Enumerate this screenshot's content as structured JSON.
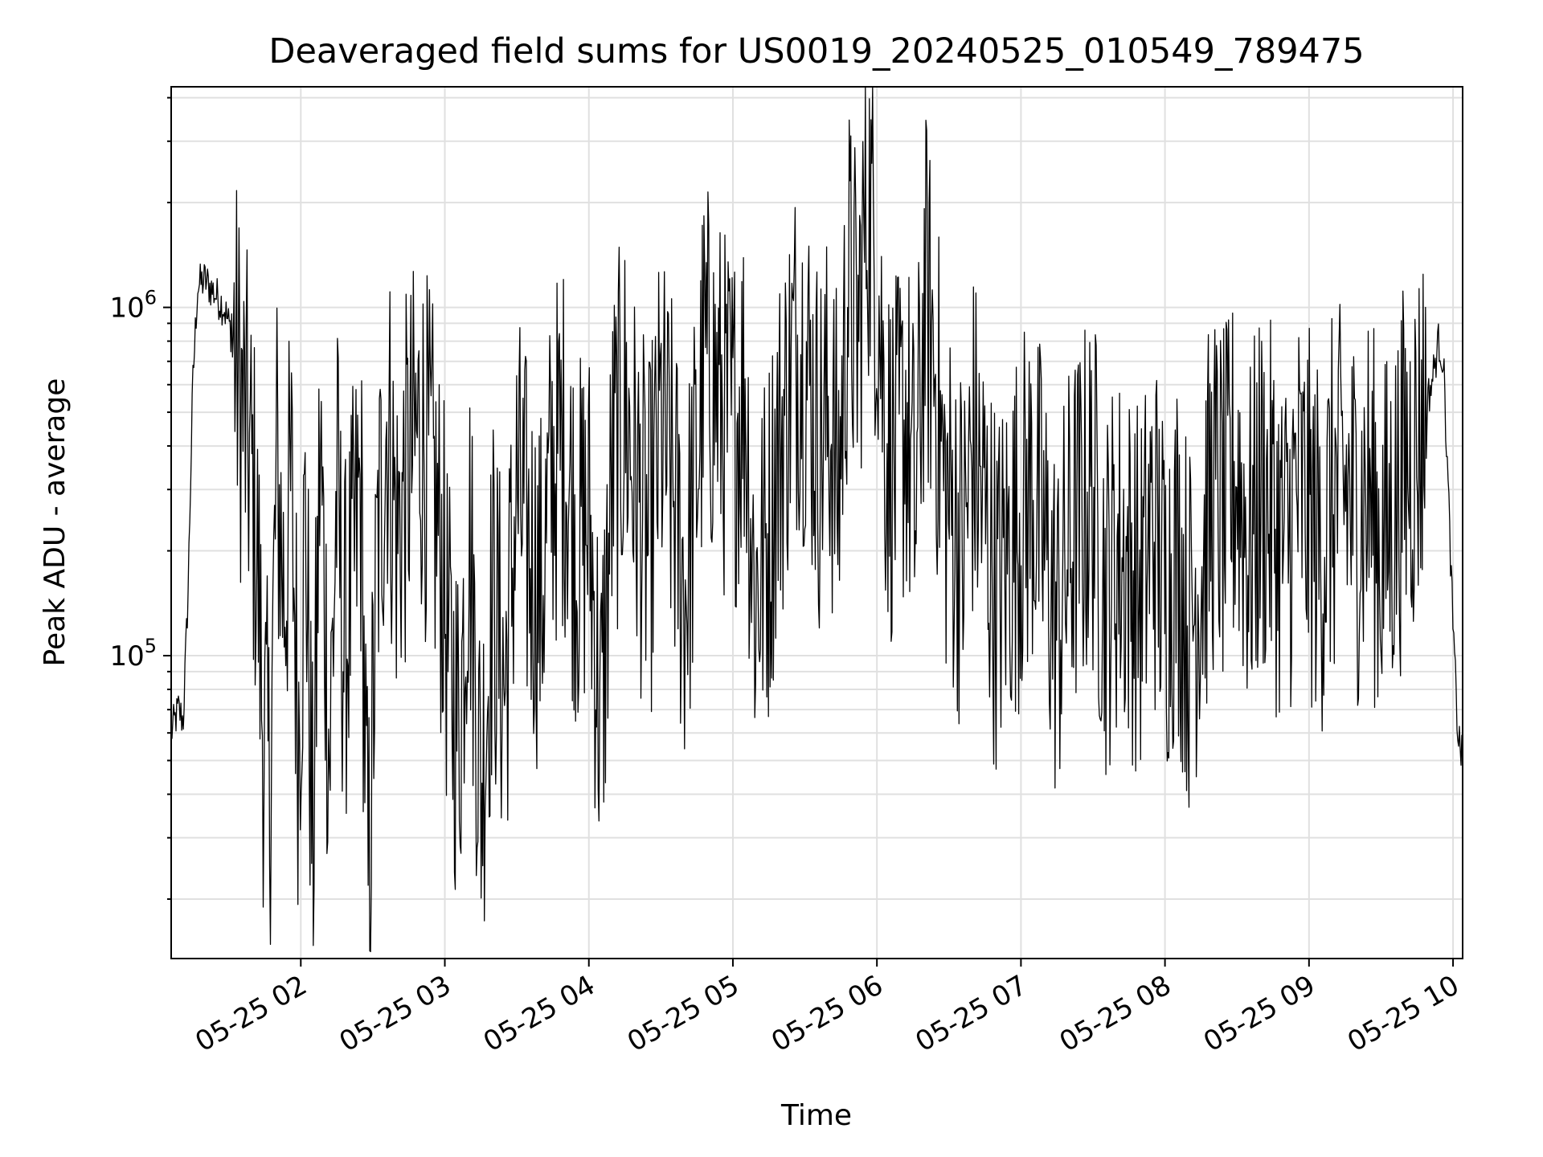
{
  "chart_data": {
    "type": "line",
    "title": "Deaveraged field sums for US0019_20240525_010549_789475",
    "xlabel": "Time",
    "ylabel": "Peak ADU - average",
    "yscale": "log",
    "ylim": [
      13500,
      4300000
    ],
    "xlim": [
      "2024-05-25 01:06",
      "2024-05-25 10:04"
    ],
    "grid": "on (major and minor)",
    "line_color": "#000000",
    "x_ticks": [
      {
        "t": "2024-05-25 02:00",
        "label": "05-25 02"
      },
      {
        "t": "2024-05-25 03:00",
        "label": "05-25 03"
      },
      {
        "t": "2024-05-25 04:00",
        "label": "05-25 04"
      },
      {
        "t": "2024-05-25 05:00",
        "label": "05-25 05"
      },
      {
        "t": "2024-05-25 06:00",
        "label": "05-25 06"
      },
      {
        "t": "2024-05-25 07:00",
        "label": "05-25 07"
      },
      {
        "t": "2024-05-25 08:00",
        "label": "05-25 08"
      },
      {
        "t": "2024-05-25 09:00",
        "label": "05-25 09"
      },
      {
        "t": "2024-05-25 10:00",
        "label": "05-25 10"
      }
    ],
    "y_ticks": [
      {
        "v": 100000,
        "base": "10",
        "exp": "5"
      },
      {
        "v": 1000000,
        "base": "10",
        "exp": "6"
      }
    ],
    "series": [
      {
        "x": [
          "2024-05-25 01:06",
          "2024-05-25 01:09",
          "2024-05-25 01:11",
          "2024-05-25 01:13",
          "2024-05-25 01:15",
          "2024-05-25 01:17",
          "2024-05-25 01:20",
          "2024-05-25 01:24",
          "2024-05-25 01:28",
          "2024-05-25 01:32",
          "2024-05-25 01:35",
          "2024-05-25 01:38",
          "2024-05-25 01:40",
          "2024-05-25 01:42",
          "2024-05-25 01:44",
          "2024-05-25 01:47",
          "2024-05-25 01:50",
          "2024-05-25 01:53",
          "2024-05-25 01:56",
          "2024-05-25 01:59",
          "2024-05-25 02:02",
          "2024-05-25 02:05",
          "2024-05-25 02:08",
          "2024-05-25 02:12",
          "2024-05-25 02:15",
          "2024-05-25 02:18",
          "2024-05-25 02:22",
          "2024-05-25 02:25",
          "2024-05-25 02:28",
          "2024-05-25 02:32",
          "2024-05-25 02:36",
          "2024-05-25 02:40",
          "2024-05-25 02:45",
          "2024-05-25 02:50",
          "2024-05-25 02:55",
          "2024-05-25 02:59",
          "2024-05-25 03:02",
          "2024-05-25 03:06",
          "2024-05-25 03:10",
          "2024-05-25 03:15",
          "2024-05-25 03:20",
          "2024-05-25 03:25",
          "2024-05-25 03:30",
          "2024-05-25 03:35",
          "2024-05-25 03:40",
          "2024-05-25 03:45",
          "2024-05-25 03:50",
          "2024-05-25 03:55",
          "2024-05-25 04:00",
          "2024-05-25 04:05",
          "2024-05-25 04:10",
          "2024-05-25 04:15",
          "2024-05-25 04:20",
          "2024-05-25 04:25",
          "2024-05-25 04:30",
          "2024-05-25 04:35",
          "2024-05-25 04:40",
          "2024-05-25 04:45",
          "2024-05-25 04:48",
          "2024-05-25 04:52",
          "2024-05-25 04:56",
          "2024-05-25 05:00",
          "2024-05-25 05:05",
          "2024-05-25 05:09",
          "2024-05-25 05:12",
          "2024-05-25 05:15",
          "2024-05-25 05:18",
          "2024-05-25 05:22",
          "2024-05-25 05:25",
          "2024-05-25 05:28",
          "2024-05-25 05:32",
          "2024-05-25 05:36",
          "2024-05-25 05:40",
          "2024-05-25 05:44",
          "2024-05-25 05:48",
          "2024-05-25 05:52",
          "2024-05-25 05:56",
          "2024-05-25 06:00",
          "2024-05-25 06:04",
          "2024-05-25 06:08",
          "2024-05-25 06:12",
          "2024-05-25 06:16",
          "2024-05-25 06:20",
          "2024-05-25 06:24",
          "2024-05-25 06:28",
          "2024-05-25 06:32",
          "2024-05-25 06:36",
          "2024-05-25 06:40",
          "2024-05-25 06:45",
          "2024-05-25 06:50",
          "2024-05-25 06:55",
          "2024-05-25 07:00",
          "2024-05-25 07:05",
          "2024-05-25 07:10",
          "2024-05-25 07:15",
          "2024-05-25 07:20",
          "2024-05-25 07:25",
          "2024-05-25 07:30",
          "2024-05-25 07:35",
          "2024-05-25 07:40",
          "2024-05-25 07:45",
          "2024-05-25 07:50",
          "2024-05-25 07:55",
          "2024-05-25 08:00",
          "2024-05-25 08:05",
          "2024-05-25 08:10",
          "2024-05-25 08:15",
          "2024-05-25 08:20",
          "2024-05-25 08:25",
          "2024-05-25 08:30",
          "2024-05-25 08:35",
          "2024-05-25 08:40",
          "2024-05-25 08:45",
          "2024-05-25 08:50",
          "2024-05-25 08:55",
          "2024-05-25 09:00",
          "2024-05-25 09:05",
          "2024-05-25 09:10",
          "2024-05-25 09:15",
          "2024-05-25 09:20",
          "2024-05-25 09:25",
          "2024-05-25 09:30",
          "2024-05-25 09:35",
          "2024-05-25 09:40",
          "2024-05-25 09:45",
          "2024-05-25 09:48",
          "2024-05-25 09:51",
          "2024-05-25 09:54",
          "2024-05-25 09:56",
          "2024-05-25 09:58",
          "2024-05-25 10:00",
          "2024-05-25 10:02",
          "2024-05-25 10:04"
        ],
        "y": [
          60000,
          70000,
          65000,
          150000,
          600000,
          1150000,
          1200000,
          1100000,
          1000000,
          800000,
          550000,
          400000,
          300000,
          180000,
          70000,
          40000,
          350000,
          150000,
          300000,
          60000,
          250000,
          25000,
          400000,
          50000,
          300000,
          100000,
          180000,
          300000,
          20000,
          200000,
          500000,
          220000,
          350000,
          450000,
          300000,
          180000,
          90000,
          60000,
          250000,
          40000,
          150000,
          80000,
          300000,
          200000,
          150000,
          350000,
          400000,
          200000,
          250000,
          60000,
          350000,
          500000,
          300000,
          200000,
          450000,
          300000,
          150000,
          350000,
          700000,
          600000,
          500000,
          450000,
          600000,
          150000,
          180000,
          220000,
          350000,
          500000,
          700000,
          800000,
          600000,
          400000,
          500000,
          300000,
          1200000,
          800000,
          2200000,
          1300000,
          400000,
          350000,
          500000,
          250000,
          1100000,
          700000,
          300000,
          250000,
          200000,
          400000,
          250000,
          150000,
          200000,
          250000,
          300000,
          200000,
          120000,
          200000,
          250000,
          300000,
          150000,
          200000,
          180000,
          150000,
          250000,
          150000,
          200000,
          120000,
          180000,
          300000,
          250000,
          350000,
          200000,
          300000,
          250000,
          200000,
          300000,
          250000,
          200000,
          280000,
          300000,
          250000,
          300000,
          200000,
          250000,
          350000,
          400000,
          500000,
          600000,
          800000,
          700000,
          300000,
          120000,
          60000,
          50000
        ]
      }
    ]
  }
}
